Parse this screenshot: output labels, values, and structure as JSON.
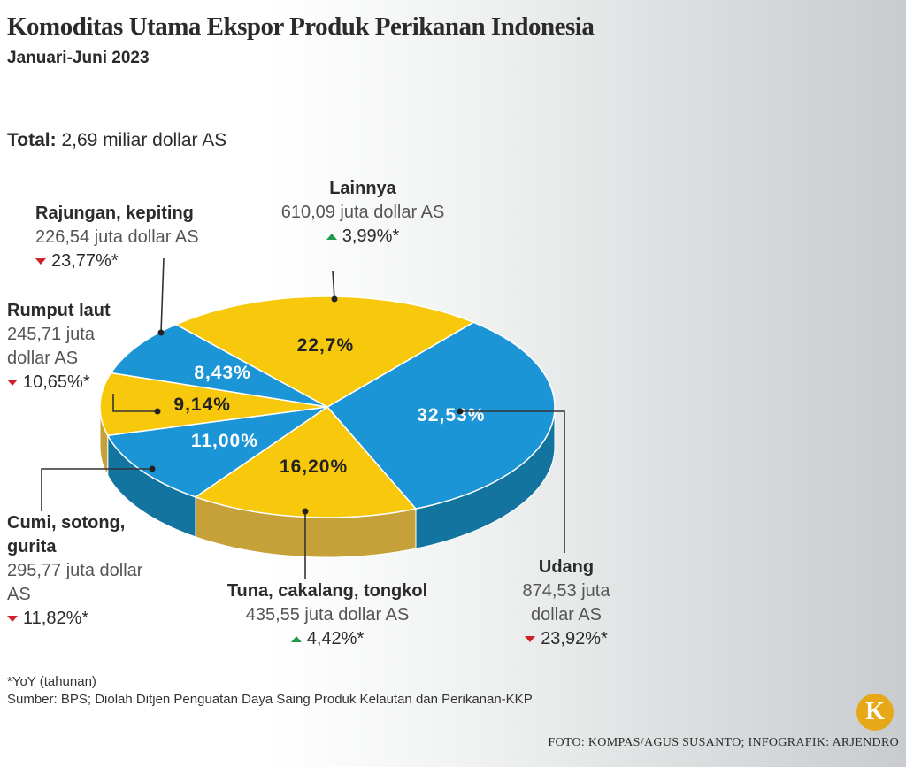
{
  "chart_data": {
    "type": "pie",
    "title": "Komoditas Utama Ekspor Produk Perikanan Indonesia",
    "subtitle": "Januari-Juni 2023",
    "total_label": "Total:",
    "total_value": "2,69 miliar dollar AS",
    "categories": [
      "Udang",
      "Tuna, cakalang, tongkol",
      "Cumi, sotong, gurita",
      "Rumput laut",
      "Rajungan, kepiting",
      "Lainnya"
    ],
    "values": [
      32.53,
      16.2,
      11.0,
      9.14,
      8.43,
      22.7
    ],
    "value_labels": [
      "32,53%",
      "16,20%",
      "11,00%",
      "9,14%",
      "8,43%",
      "22,7%"
    ],
    "colors": [
      "#1b95d6",
      "#f8c80c",
      "#1b95d6",
      "#f8c80c",
      "#1b95d6",
      "#f8c80c"
    ],
    "side_colors": [
      "#13749f",
      "#c6a13a",
      "#13749f",
      "#c6a13a",
      "#13749f",
      "#c6a13a"
    ],
    "amounts": [
      "874,53 juta dollar AS",
      "435,55 juta dollar AS",
      "295,77 juta dollar AS",
      "245,71 juta dollar AS",
      "226,54 juta dollar AS",
      "610,09 juta dollar AS"
    ],
    "changes": [
      {
        "label": "23,92%*",
        "direction": "down"
      },
      {
        "label": "4,42%*",
        "direction": "up"
      },
      {
        "label": "11,82%*",
        "direction": "down"
      },
      {
        "label": "10,65%*",
        "direction": "down"
      },
      {
        "label": "23,77%*",
        "direction": "down"
      },
      {
        "label": "3,99%*",
        "direction": "up"
      }
    ],
    "footnote": "*YoY (tahunan)",
    "source": "Sumber: BPS; Diolah Ditjen Penguatan Daya Saing Produk Kelautan dan Perikanan-KKP",
    "credit": "FOTO: KOMPAS/AGUS SUSANTO; INFOGRAFIK: ARJENDRO",
    "logo": "K"
  }
}
